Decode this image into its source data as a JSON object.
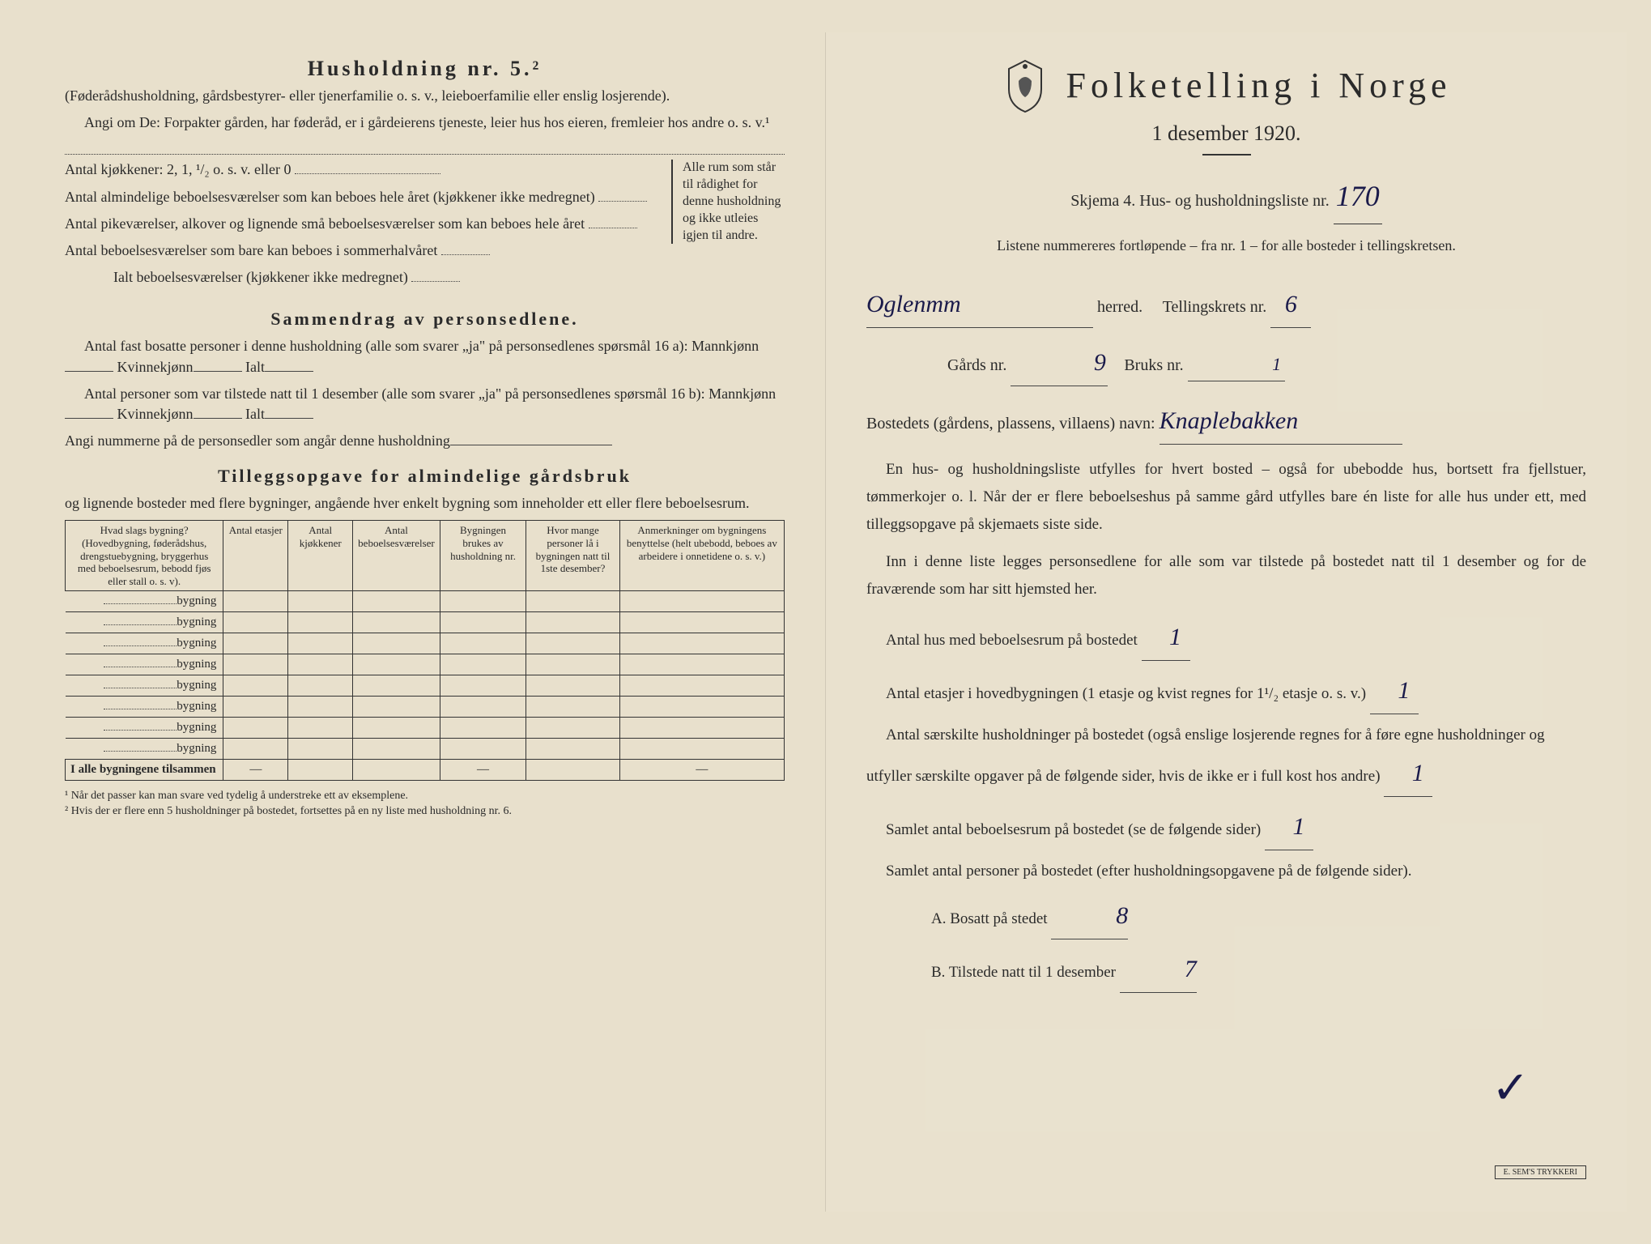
{
  "left": {
    "heading": "Husholdning nr. 5.²",
    "subheading": "(Føderådshusholdning, gårdsbestyrer- eller tjenerfamilie o. s. v., leieboerfamilie eller enslig losjerende).",
    "angi": "Angi om De: Forpakter gården, har føderåd, er i gårdeierens tjeneste, leier hus hos eieren, fremleier hos andre o. s. v.¹",
    "kjokken": "Antal kjøkkener: 2, 1, ¹/₂ o. s. v. eller 0",
    "rows": [
      "Antal almindelige beboelsesværelser som kan beboes hele året (kjøkkener ikke medregnet)",
      "Antal pikeværelser, alkover og lignende små beboelsesværelser som kan beboes hele året",
      "Antal beboelsesværelser som bare kan beboes i sommerhalvåret"
    ],
    "ialt": "Ialt beboelsesværelser (kjøkkener ikke medregnet)",
    "brace_note": "Alle rum som står til rådighet for denne husholdning og ikke utleies igjen til andre.",
    "samm_heading": "Sammendrag av personsedlene.",
    "samm1": "Antal fast bosatte personer i denne husholdning (alle som svarer „ja\" på personsedlenes spørsmål 16 a): Mannkjønn",
    "kvinne": "Kvinnekjønn",
    "ialt_label": "Ialt",
    "samm2": "Antal personer som var tilstede natt til 1 desember (alle som svarer „ja\" på personsedlenes spørsmål 16 b): Mannkjønn",
    "angi_num": "Angi nummerne på de personsedler som angår denne husholdning",
    "tillegg_heading": "Tilleggsopgave for almindelige gårdsbruk",
    "tillegg_sub": "og lignende bosteder med flere bygninger, angående hver enkelt bygning som inneholder ett eller flere beboelsesrum.",
    "table_headers": [
      "Hvad slags bygning?\n(Hovedbygning, føderådshus, drengstuebygning, bryggerhus med beboelsesrum, bebodd fjøs eller stall o. s. v).",
      "Antal etasjer",
      "Antal kjøkkener",
      "Antal beboelsesværelser",
      "Bygningen brukes av husholdning nr.",
      "Hvor mange personer lå i bygningen natt til 1ste desember?",
      "Anmerkninger om bygningens benyttelse (helt ubebodd, beboes av arbeidere i onnetidene o. s. v.)"
    ],
    "bygning": "bygning",
    "total_row": "I alle bygningene tilsammen",
    "footnote1": "¹ Når det passer kan man svare ved tydelig å understreke ett av eksemplene.",
    "footnote2": "² Hvis der er flere enn 5 husholdninger på bostedet, fortsettes på en ny liste med husholdning nr. 6."
  },
  "right": {
    "title": "Folketelling i Norge",
    "date": "1 desember 1920.",
    "skjema": "Skjema 4.   Hus- og husholdningsliste nr.",
    "skjema_value": "170",
    "listene": "Listene nummereres fortløpende – fra nr. 1 – for alle bosteder i tellingskretsen.",
    "herred_value": "Oglenmm",
    "herred_label": "herred.",
    "tellingskrets": "Tellingskrets nr.",
    "tellingskrets_value": "6",
    "gards": "Gårds nr.",
    "gards_value": "9",
    "bruks": "Bruks nr.",
    "bruks_value": "1",
    "bostedets": "Bostedets (gårdens, plassens, villaens) navn:",
    "bostedets_value": "Knaplebakken",
    "para1": "En hus- og husholdningsliste utfylles for hvert bosted – også for ubebodde hus, bortsett fra fjellstuer, tømmerkojer o. l. Når der er flere beboelseshus på samme gård utfylles bare én liste for alle hus under ett, med tilleggsopgave på skjemaets siste side.",
    "para2": "Inn i denne liste legges personsedlene for alle som var tilstede på bostedet natt til 1 desember og for de fraværende som har sitt hjemsted her.",
    "antal_hus": "Antal hus med beboelsesrum på bostedet",
    "antal_hus_value": "1",
    "antal_etasjer": "Antal etasjer i hovedbygningen (1 etasje og kvist regnes for 1¹/₂ etasje o. s. v.)",
    "antal_etasjer_value": "1",
    "antal_husholdninger": "Antal særskilte husholdninger på bostedet (også enslige losjerende regnes for å føre egne husholdninger og utfyller særskilte opgaver på de følgende sider, hvis de ikke er i full kost hos andre)",
    "antal_husholdninger_value": "1",
    "samlet_beboelse": "Samlet antal beboelsesrum på bostedet (se de følgende sider)",
    "samlet_beboelse_value": "1",
    "samlet_personer": "Samlet antal personer på bostedet (efter husholdningsopgavene på de følgende sider).",
    "bosatt": "A.  Bosatt på stedet",
    "bosatt_value": "8",
    "tilstede": "B.  Tilstede natt til 1 desember",
    "tilstede_value": "7",
    "stamp": "E. SEM'S TRYKKERI"
  }
}
